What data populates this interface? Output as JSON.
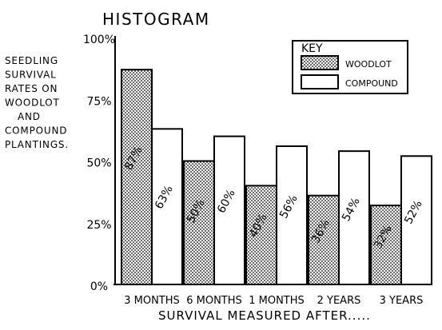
{
  "chart_data": {
    "type": "bar",
    "title": "HISTOGRAM",
    "ylabel_lines": [
      "SEEDLING",
      "SURVIVAL",
      "RATES ON",
      "WOODLOT",
      "AND",
      "COMPOUND",
      "PLANTINGS."
    ],
    "xlabel": "SURVIVAL MEASURED AFTER.....",
    "categories": [
      "3 MONTHS",
      "6 MONTHS",
      "1 MONTHS",
      "2 YEARS",
      "3 YEARS"
    ],
    "ylim": [
      0,
      100
    ],
    "yticks": [
      {
        "value": 0,
        "label": "0%"
      },
      {
        "value": 25,
        "label": "25%"
      },
      {
        "value": 50,
        "label": "50%"
      },
      {
        "value": 75,
        "label": "75%"
      },
      {
        "value": 100,
        "label": "100%"
      }
    ],
    "series": [
      {
        "name": "WOODLOT",
        "values": [
          87,
          50,
          40,
          36,
          32
        ],
        "labels": [
          "87%",
          "50%",
          "40%",
          "36%",
          "32%"
        ]
      },
      {
        "name": "COMPOUND",
        "values": [
          63,
          60,
          56,
          54,
          52
        ],
        "labels": [
          "63%",
          "60%",
          "56%",
          "54%",
          "52%"
        ]
      }
    ],
    "legend": {
      "title": "KEY",
      "position": "top-right"
    },
    "grid": false
  }
}
